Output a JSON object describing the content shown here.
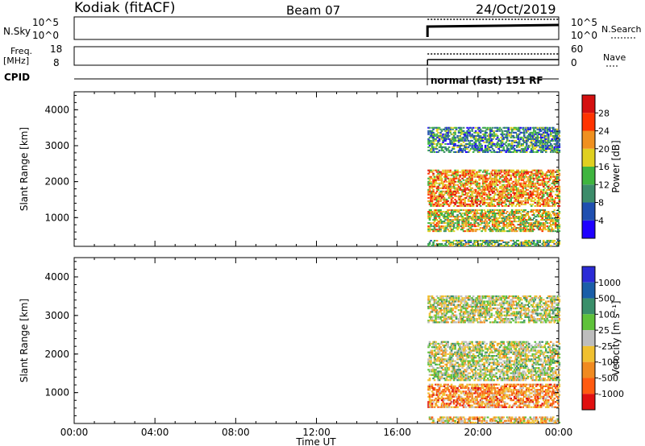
{
  "header": {
    "station": "Kodiak (fitACF)",
    "beam": "Beam 07",
    "date": "24/Oct/2019"
  },
  "left_labels": {
    "nsky": "N.Sky",
    "freq": "Freq.",
    "freq_unit": "[MHz]",
    "cpid": "CPID"
  },
  "right_labels": {
    "nsearch": "N.Search",
    "nave": "Nave"
  },
  "noise_axis": {
    "left_ticks": [
      "10^5",
      "10^0"
    ],
    "right_ticks": [
      "10^5",
      "10^0"
    ]
  },
  "freq_axis": {
    "left_ticks": [
      "18",
      "8"
    ],
    "right_ticks": [
      "60",
      "0"
    ]
  },
  "cpid_text": "normal (fast) 151 RF",
  "colors": {
    "axis": "#000000",
    "background": "#ffffff"
  },
  "chart_data": [
    {
      "type": "heatmap",
      "name": "power",
      "ylabel": "Slant Range [km]",
      "yticks": [
        1000,
        2000,
        3000,
        4000
      ],
      "ylim": [
        200,
        4500
      ],
      "xlim_hours": [
        0,
        24
      ],
      "data_extent_hours": [
        17.5,
        24
      ],
      "colorbar_label": "Power [dB]",
      "colorbar_ticks": [
        "4",
        "8",
        "12",
        "16",
        "20",
        "24",
        "28"
      ],
      "colorbar_colors": [
        "#1f00ff",
        "#1f4fb0",
        "#3c8c6a",
        "#3fb53f",
        "#e0d020",
        "#f09020",
        "#ff3300",
        "#d41010"
      ],
      "echo_bands_km": [
        {
          "from": 600,
          "to": 1200,
          "level": 4
        },
        {
          "from": 1300,
          "to": 2300,
          "level": 5
        },
        {
          "from": 2800,
          "to": 3500,
          "level": 2
        },
        {
          "from": 200,
          "to": 350,
          "level": 3
        }
      ]
    },
    {
      "type": "heatmap",
      "name": "velocity",
      "ylabel": "Slant Range [km]",
      "yticks": [
        1000,
        2000,
        3000,
        4000
      ],
      "ylim": [
        200,
        4500
      ],
      "xlim_hours": [
        0,
        24
      ],
      "data_extent_hours": [
        17.5,
        24
      ],
      "colorbar_label": "Velocity [m s⁻¹]",
      "colorbar_ticks": [
        "1000",
        "500",
        "100",
        "25",
        "-25",
        "-100",
        "-500",
        "-1000"
      ],
      "colorbar_colors": [
        "#2b2bd6",
        "#1a5ea8",
        "#3a8f6a",
        "#5fc23a",
        "#bdbdbd",
        "#f0c030",
        "#f08a20",
        "#ff5a10",
        "#e01010"
      ],
      "echo_bands_km": [
        {
          "from": 600,
          "to": 1200,
          "level": 6
        },
        {
          "from": 1300,
          "to": 2300,
          "level": 4
        },
        {
          "from": 2800,
          "to": 3500,
          "level": 4
        },
        {
          "from": 200,
          "to": 350,
          "level": 5
        }
      ],
      "xlabel": "Time UT",
      "xticks": [
        "00:00",
        "04:00",
        "08:00",
        "12:00",
        "16:00",
        "20:00",
        "00:00"
      ]
    }
  ]
}
